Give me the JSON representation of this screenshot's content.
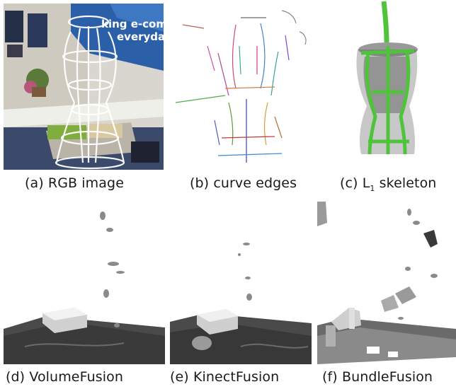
{
  "figure": {
    "panels": [
      {
        "id": "a",
        "caption": "(a) RGB image",
        "overlay_text": [
          "king e-comm",
          "everyday"
        ]
      },
      {
        "id": "b",
        "caption": "(b) curve edges"
      },
      {
        "id": "c",
        "caption_prefix": "(c) L",
        "caption_sub": "1",
        "caption_suffix": " skeleton"
      },
      {
        "id": "d",
        "caption": "(d) VolumeFusion"
      },
      {
        "id": "e",
        "caption": "(e) KinectFusion"
      },
      {
        "id": "f",
        "caption": "(f) BundleFusion"
      }
    ]
  }
}
